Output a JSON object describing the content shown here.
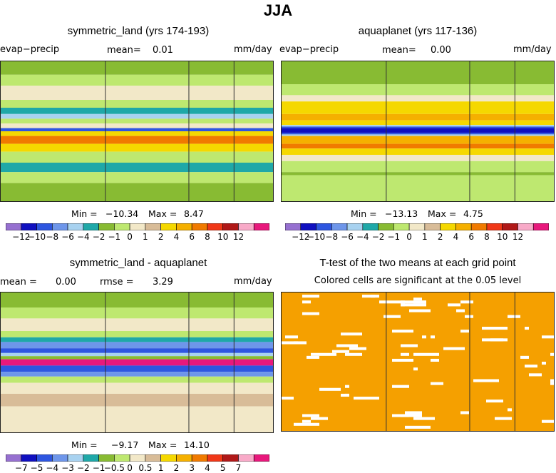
{
  "page_title": "JJA",
  "chart_data": [
    {
      "type": "heatmap",
      "title": "symmetric_land (yrs 174-193)",
      "variable": "evap−precip",
      "mean_label": "mean=",
      "mean_value": "0.01",
      "units": "mm/day",
      "min_label": "Min =",
      "min_value": "−10.34",
      "max_label": "Max =",
      "max_value": "8.47",
      "colorbar_ticks": [
        "−12",
        "−10",
        "−8",
        "−6",
        "−4",
        "−2",
        "−1",
        "0",
        "1",
        "2",
        "4",
        "6",
        "8",
        "10",
        "12"
      ],
      "colorbar_colors": [
        "#9670d0",
        "#1010c0",
        "#2e56e0",
        "#6e96ea",
        "#a8d2f0",
        "#1fa8a8",
        "#88bb33",
        "#bee870",
        "#f2e8c8",
        "#d8bc98",
        "#f5d800",
        "#f5b000",
        "#f07a00",
        "#f03818",
        "#b01818",
        "#f8aac8",
        "#e8187c"
      ],
      "bands": [
        {
          "lat": 90,
          "color": "#88bb33"
        },
        {
          "lat": 72,
          "color": "#bee870"
        },
        {
          "lat": 58,
          "color": "#f2e8c8"
        },
        {
          "lat": 40,
          "color": "#bee870"
        },
        {
          "lat": 30,
          "color": "#1fa8a8"
        },
        {
          "lat": 22,
          "color": "#a8d2f0"
        },
        {
          "lat": 16,
          "color": "#bee870"
        },
        {
          "lat": 10,
          "color": "#f2e8c8"
        },
        {
          "lat": 4,
          "color": "#2e56e0"
        },
        {
          "lat": 0,
          "color": "#f5d800"
        },
        {
          "lat": -6,
          "color": "#f07a00"
        },
        {
          "lat": -16,
          "color": "#f5d800"
        },
        {
          "lat": -26,
          "color": "#bee870"
        },
        {
          "lat": -40,
          "color": "#1fa8a8"
        },
        {
          "lat": -52,
          "color": "#bee870"
        },
        {
          "lat": -66,
          "color": "#88bb33"
        }
      ]
    },
    {
      "type": "heatmap",
      "title": "aquaplanet (yrs 117-136)",
      "variable": "evap−precip",
      "mean_label": "mean=",
      "mean_value": "0.00",
      "units": "mm/day",
      "min_label": "Min =",
      "min_value": "−13.13",
      "max_label": "Max =",
      "max_value": "4.75",
      "colorbar_ticks": [
        "−12",
        "−10",
        "−8",
        "−6",
        "−4",
        "−2",
        "−1",
        "0",
        "1",
        "2",
        "4",
        "6",
        "8",
        "10",
        "12"
      ],
      "colorbar_colors": [
        "#9670d0",
        "#1010c0",
        "#2e56e0",
        "#6e96ea",
        "#a8d2f0",
        "#1fa8a8",
        "#88bb33",
        "#bee870",
        "#f2e8c8",
        "#d8bc98",
        "#f5d800",
        "#f5b000",
        "#f07a00",
        "#f03818",
        "#b01818",
        "#f8aac8",
        "#e8187c"
      ],
      "bands": [
        {
          "lat": 90,
          "color": "#88bb33"
        },
        {
          "lat": 60,
          "color": "#bee870"
        },
        {
          "lat": 46,
          "color": "#f2e8c8"
        },
        {
          "lat": 38,
          "color": "#f5d800"
        },
        {
          "lat": 22,
          "color": "#f5b000"
        },
        {
          "lat": 14,
          "color": "#f5d800"
        },
        {
          "lat": 8,
          "color": "#a8d2f0"
        },
        {
          "lat": 6,
          "color": "#2e56e0"
        },
        {
          "lat": 4,
          "color": "#1010c0"
        },
        {
          "lat": -2,
          "color": "#2e56e0"
        },
        {
          "lat": -4,
          "color": "#a8d2f0"
        },
        {
          "lat": -6,
          "color": "#f5b000"
        },
        {
          "lat": -16,
          "color": "#f07a00"
        },
        {
          "lat": -22,
          "color": "#f5d800"
        },
        {
          "lat": -30,
          "color": "#f2e8c8"
        },
        {
          "lat": -38,
          "color": "#bee870"
        },
        {
          "lat": -52,
          "color": "#88bb33"
        },
        {
          "lat": -56,
          "color": "#bee870"
        }
      ]
    },
    {
      "type": "heatmap",
      "title": "symmetric_land - aquaplanet",
      "mean_label": "mean =",
      "mean_value": "0.00",
      "rmse_label": "rmse =",
      "rmse_value": "3.29",
      "units": "mm/day",
      "min_label": "Min =",
      "min_value": "−9.17",
      "max_label": "Max =",
      "max_value": "14.10",
      "colorbar_ticks": [
        "−7",
        "−5",
        "−4",
        "−3",
        "−2",
        "−1",
        "−0.5",
        "0",
        "0.5",
        "1",
        "2",
        "3",
        "4",
        "5",
        "7"
      ],
      "colorbar_colors": [
        "#9670d0",
        "#1010c0",
        "#2e56e0",
        "#6e96ea",
        "#a8d2f0",
        "#1fa8a8",
        "#88bb33",
        "#bee870",
        "#f2e8c8",
        "#d8bc98",
        "#f5d800",
        "#f5b000",
        "#f07a00",
        "#f03818",
        "#b01818",
        "#f8aac8",
        "#e8187c"
      ],
      "bands": [
        {
          "lat": 90,
          "color": "#88bb33"
        },
        {
          "lat": 70,
          "color": "#bee870"
        },
        {
          "lat": 56,
          "color": "#f2e8c8"
        },
        {
          "lat": 40,
          "color": "#bee870"
        },
        {
          "lat": 32,
          "color": "#1fa8a8"
        },
        {
          "lat": 26,
          "color": "#6e96ea"
        },
        {
          "lat": 18,
          "color": "#2e56e0"
        },
        {
          "lat": 12,
          "color": "#a8d2f0"
        },
        {
          "lat": 8,
          "color": "#88bb33"
        },
        {
          "lat": 4,
          "color": "#e8187c"
        },
        {
          "lat": -4,
          "color": "#2e56e0"
        },
        {
          "lat": -12,
          "color": "#6e96ea"
        },
        {
          "lat": -18,
          "color": "#bee870"
        },
        {
          "lat": -26,
          "color": "#f2e8c8"
        },
        {
          "lat": -40,
          "color": "#d8bc98"
        },
        {
          "lat": -56,
          "color": "#f2e8c8"
        }
      ]
    },
    {
      "type": "heatmap",
      "title": "T-test of the two means at each grid point",
      "subtitle": "Colored cells are significant at the 0.05 level",
      "significant_color": "#f5a000",
      "significant_fraction": 0.9
    }
  ]
}
